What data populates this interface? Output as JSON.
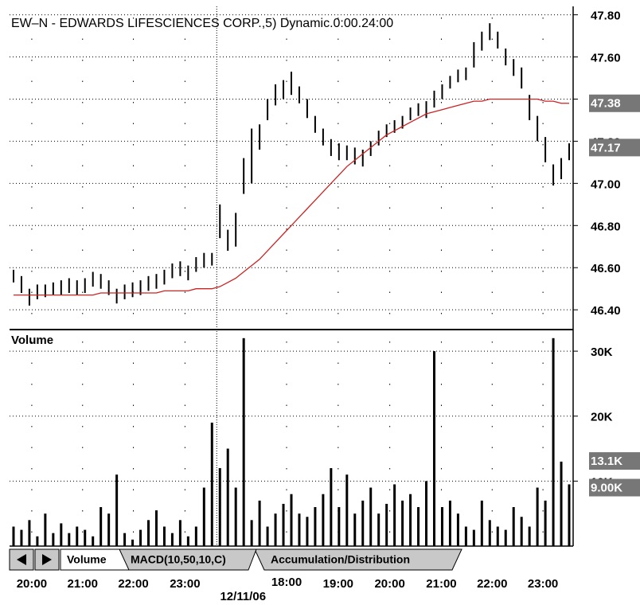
{
  "chart_data": [
    {
      "type": "range",
      "title": "EW–N - EDWARDS LIFESCIENCES CORP.,5) Dynamic.0:00.24:00",
      "color": "#000000",
      "high": [
        46.59,
        46.56,
        46.5,
        46.52,
        46.52,
        46.53,
        46.54,
        46.55,
        46.54,
        46.55,
        46.58,
        46.57,
        46.54,
        46.5,
        46.52,
        46.53,
        46.54,
        46.56,
        46.57,
        46.59,
        46.62,
        46.63,
        46.61,
        46.65,
        46.67,
        46.67,
        46.9,
        46.78,
        46.86,
        47.12,
        47.26,
        47.28,
        47.4,
        47.47,
        47.49,
        47.53,
        47.46,
        47.4,
        47.32,
        47.26,
        47.21,
        47.19,
        47.18,
        47.17,
        47.16,
        47.2,
        47.25,
        47.28,
        47.3,
        47.32,
        47.36,
        47.38,
        47.39,
        47.44,
        47.47,
        47.51,
        47.54,
        47.55,
        47.67,
        47.72,
        47.76,
        47.72,
        47.64,
        47.59,
        47.55,
        47.42,
        47.32,
        47.22,
        47.09,
        47.12,
        47.19
      ],
      "low": [
        46.53,
        46.48,
        46.42,
        46.45,
        46.46,
        46.47,
        46.47,
        46.48,
        46.47,
        46.48,
        46.51,
        46.5,
        46.47,
        46.43,
        46.45,
        46.46,
        46.47,
        46.49,
        46.5,
        46.52,
        46.55,
        46.56,
        46.54,
        46.58,
        46.6,
        46.61,
        46.74,
        46.68,
        46.7,
        46.95,
        47.0,
        47.16,
        47.3,
        47.37,
        47.4,
        47.42,
        47.38,
        47.31,
        47.24,
        47.18,
        47.13,
        47.11,
        47.11,
        47.09,
        47.08,
        47.13,
        47.18,
        47.22,
        47.24,
        47.26,
        47.3,
        47.32,
        47.31,
        47.36,
        47.4,
        47.45,
        47.48,
        47.49,
        47.55,
        47.63,
        47.68,
        47.64,
        47.56,
        47.51,
        47.45,
        47.3,
        47.2,
        47.1,
        46.99,
        47.02,
        47.11
      ],
      "overlay": {
        "color": "#cc2222",
        "values": [
          46.47,
          46.47,
          46.47,
          46.47,
          46.47,
          46.47,
          46.47,
          46.47,
          46.47,
          46.47,
          46.47,
          46.48,
          46.48,
          46.48,
          46.48,
          46.48,
          46.48,
          46.48,
          46.48,
          46.49,
          46.49,
          46.49,
          46.49,
          46.5,
          46.5,
          46.5,
          46.51,
          46.53,
          46.55,
          46.58,
          46.61,
          46.64,
          46.68,
          46.72,
          46.76,
          46.8,
          46.84,
          46.88,
          46.92,
          46.96,
          47.0,
          47.04,
          47.08,
          47.11,
          47.14,
          47.17,
          47.2,
          47.23,
          47.25,
          47.27,
          47.29,
          47.31,
          47.33,
          47.34,
          47.35,
          47.36,
          47.37,
          47.38,
          47.39,
          47.39,
          47.4,
          47.4,
          47.4,
          47.4,
          47.4,
          47.4,
          47.4,
          47.39,
          47.39,
          47.38,
          47.38
        ]
      },
      "xlim": [
        -0.5,
        70.5
      ],
      "ylim": [
        46.31,
        47.84
      ],
      "yticks": [
        {
          "value": 47.8,
          "label": "47.80"
        },
        {
          "value": 47.6,
          "label": "47.60"
        },
        {
          "value": 47.4,
          "label": "47.40"
        },
        {
          "value": 47.2,
          "label": "47.20"
        },
        {
          "value": 47.0,
          "label": "47.00"
        },
        {
          "value": 46.8,
          "label": "46.80"
        },
        {
          "value": 46.6,
          "label": "46.60"
        },
        {
          "value": 46.4,
          "label": "46.40"
        }
      ],
      "last_labels": [
        47.38,
        47.17
      ],
      "grid": true
    },
    {
      "type": "bar",
      "title": "Volume",
      "color": "#000000",
      "values": [
        3000,
        2500,
        4000,
        1500,
        5000,
        2000,
        3500,
        2000,
        3000,
        2500,
        1500,
        6000,
        5000,
        11000,
        2000,
        1000,
        2500,
        4000,
        5500,
        3000,
        2000,
        4000,
        1500,
        3000,
        9000,
        19000,
        12000,
        15000,
        9000,
        32000,
        4000,
        7000,
        3000,
        5000,
        6500,
        8000,
        5000,
        4500,
        6000,
        8000,
        12000,
        6000,
        11000,
        5000,
        7000,
        9000,
        5000,
        6500,
        9500,
        7000,
        8000,
        6000,
        10000,
        30000,
        6000,
        7000,
        5000,
        3000,
        2500,
        7000,
        4000,
        3000,
        2500,
        6000,
        4500,
        3000,
        9000,
        7000,
        32000,
        13000,
        9500
      ],
      "xlim": [
        -0.5,
        70.5
      ],
      "ylim": [
        0,
        33200
      ],
      "yticks": [
        {
          "value": 30000,
          "label": "30K"
        },
        {
          "value": 20000,
          "label": "20K"
        },
        {
          "value": 10000,
          "label": "10K"
        }
      ],
      "last_labels": [
        {
          "value": 13100,
          "label": "13.1K"
        },
        {
          "value": 9000,
          "label": "9.00K"
        }
      ],
      "xticks": [
        {
          "value": 2.3,
          "label": "20:00"
        },
        {
          "value": 8.7,
          "label": "21:00"
        },
        {
          "value": 15.1,
          "label": "22:00"
        },
        {
          "value": 21.6,
          "label": "23:00"
        },
        {
          "value": 34.4,
          "label": "18:00"
        },
        {
          "value": 40.9,
          "label": "19:00"
        },
        {
          "value": 47.4,
          "label": "20:00"
        },
        {
          "value": 53.9,
          "label": "21:00"
        },
        {
          "value": 60.3,
          "label": "22:00"
        },
        {
          "value": 66.7,
          "label": "23:00"
        }
      ],
      "annotation": {
        "value": 25.6,
        "label": "12/11/06"
      },
      "grid": true
    }
  ],
  "tabs": [
    "Volume",
    "MACD(10,50,10,C)",
    "Accumulation/Distribution"
  ]
}
